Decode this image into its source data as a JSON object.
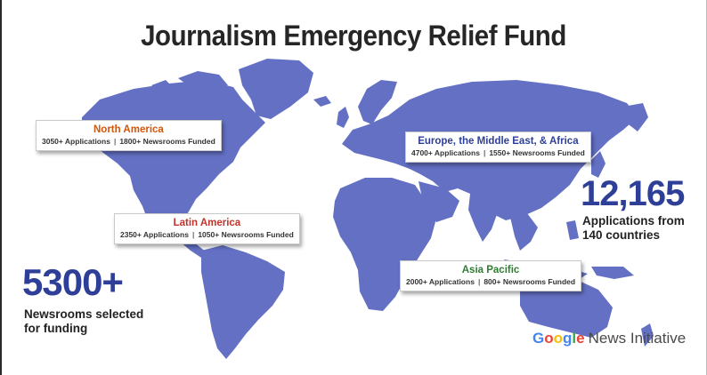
{
  "title": "Journalism Emergency Relief Fund",
  "colors": {
    "land": "#6470c4",
    "stat_blue": "#2e3f98",
    "north_america": "#d0570d",
    "latin_america": "#c0342c",
    "emea": "#2e3f98",
    "asia_pacific": "#2e7d32"
  },
  "regions": [
    {
      "name": "North America",
      "applications": "3050+ Applications",
      "funded": "1800+ Newsrooms Funded",
      "color": "#d0570d"
    },
    {
      "name": "Latin America",
      "applications": "2350+ Applications",
      "funded": "1050+ Newsrooms Funded",
      "color": "#c0342c"
    },
    {
      "name": "Europe, the Middle East, & Africa",
      "applications": "4700+ Applications",
      "funded": "1550+ Newsrooms Funded",
      "color": "#2e3f98"
    },
    {
      "name": "Asia Pacific",
      "applications": "2000+ Applications",
      "funded": "800+ Newsrooms Funded",
      "color": "#2e7d32"
    }
  ],
  "stats": {
    "applications_total": "12,165",
    "applications_caption_line1": "Applications from",
    "applications_caption_line2": "140 countries",
    "newsrooms_total": "5300+",
    "newsrooms_caption_line1": "Newsrooms selected",
    "newsrooms_caption_line2": "for funding"
  },
  "brand": {
    "google": "Google",
    "news_initiative": "News Initiative"
  }
}
